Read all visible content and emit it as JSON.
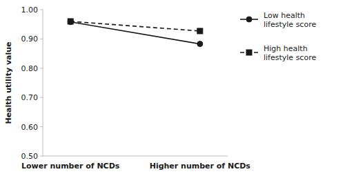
{
  "chart_data": {
    "type": "line",
    "categories": [
      "Lower number of NCDs",
      "Higher number of NCDs"
    ],
    "ylabel": "Health utility value",
    "ylim": [
      0.5,
      1.0
    ],
    "yticks": [
      {
        "value": 0.5,
        "label": "0.50"
      },
      {
        "value": 0.6,
        "label": "0.60"
      },
      {
        "value": 0.7,
        "label": "0.70"
      },
      {
        "value": 0.8,
        "label": "0.80"
      },
      {
        "value": 0.9,
        "label": "0.90"
      },
      {
        "value": 1.0,
        "label": "1.00"
      }
    ],
    "grid": false,
    "legend": "right",
    "series": [
      {
        "name": "Low health\nlifestyle score",
        "color": "#1a1a1a",
        "marker": "circle",
        "line_style": "solid",
        "values": [
          0.958,
          0.883
        ]
      },
      {
        "name": "High health\nlifestyle score",
        "color": "#1a1a1a",
        "marker": "square",
        "line_style": "dashed",
        "values": [
          0.96,
          0.927
        ]
      }
    ]
  }
}
